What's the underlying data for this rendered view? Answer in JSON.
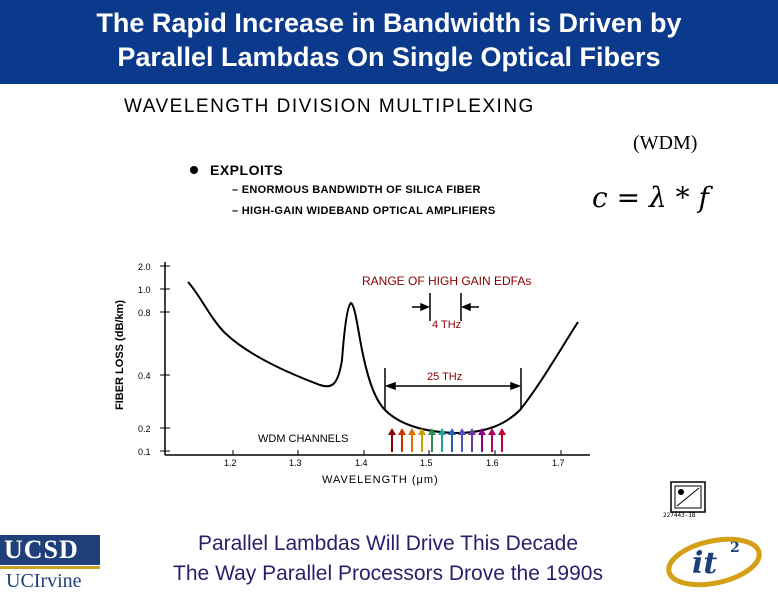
{
  "header": {
    "line1": "The Rapid Increase in Bandwidth is Driven by",
    "line2": "Parallel Lambdas On Single Optical Fibers",
    "bg_color": "#0b3a8c"
  },
  "diagram": {
    "title": "WAVELENGTH DIVISION MULTIPLEXING",
    "abbr": "(WDM)",
    "bullet": "EXPLOITS",
    "sub1": "– ENORMOUS BANDWIDTH OF SILICA FIBER",
    "sub2": "– HIGH-GAIN WIDEBAND OPTICAL AMPLIFIERS",
    "formula": "c = λ * f",
    "plot": {
      "ylabel": "FIBER LOSS (dB/km)",
      "xlabel": "WAVELENGTH (μm)",
      "yticks": [
        "2.0",
        "1.0",
        "0.8",
        "0.4",
        "0.2",
        "0.1"
      ],
      "xticks": [
        "1.2",
        "1.3",
        "1.4",
        "1.5",
        "1.6",
        "1.7"
      ],
      "edfa_label": "RANGE OF HIGH GAIN EDFAs",
      "edfa_width": "4 THz",
      "window_width": "25 THz",
      "channels_label": "WDM CHANNELS",
      "accent_color": "#8b0000",
      "channel_colors": [
        "#8b0000",
        "#cc3300",
        "#e07000",
        "#c9a000",
        "#2e8b57",
        "#20a0a0",
        "#2060c0",
        "#5050c0",
        "#6a3aa0",
        "#8b0080",
        "#b00060",
        "#c00030"
      ]
    },
    "stamp_label": "227443-1B"
  },
  "footer": {
    "line1": "Parallel Lambdas Will Drive This Decade",
    "line2": "The Way Parallel Processors Drove the 1990s",
    "color": "#2e1c6b"
  },
  "logos": {
    "ucsd": "UCSD",
    "uci": "UCIrvine",
    "it2": "it",
    "it2_sup": "2"
  }
}
